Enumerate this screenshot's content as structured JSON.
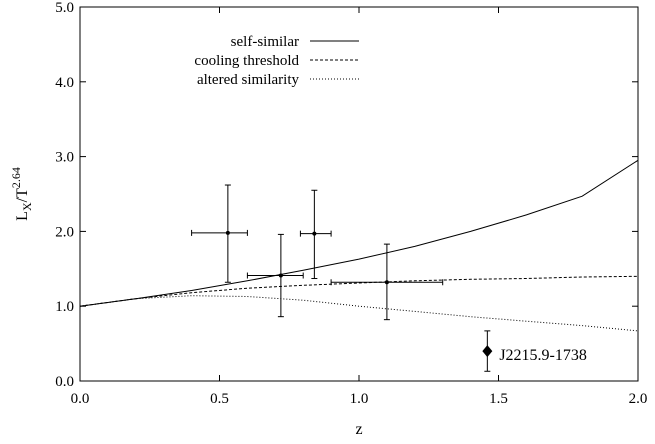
{
  "chart_data": {
    "type": "scatter",
    "xlabel": "z",
    "ylabel": {
      "base": "L",
      "sub": "X",
      "mid": "/T",
      "sup": "2.64"
    },
    "xlim": [
      0.0,
      2.0
    ],
    "ylim": [
      0.0,
      5.0
    ],
    "xticks": [
      0.0,
      0.5,
      1.0,
      1.5,
      2.0
    ],
    "xtick_labels": [
      "0.0",
      "0.5",
      "1.0",
      "1.5",
      "2.0"
    ],
    "yticks": [
      0.0,
      1.0,
      2.0,
      3.0,
      4.0,
      5.0
    ],
    "ytick_labels": [
      "0.0",
      "1.0",
      "2.0",
      "3.0",
      "4.0",
      "5.0"
    ],
    "grid": false,
    "legend_position": "top-left",
    "series": [
      {
        "name": "self-similar",
        "style": "solid",
        "x": [
          0.0,
          0.2,
          0.4,
          0.6,
          0.8,
          1.0,
          1.2,
          1.4,
          1.6,
          1.8,
          2.0
        ],
        "y": [
          1.0,
          1.1,
          1.21,
          1.34,
          1.48,
          1.63,
          1.8,
          2.0,
          2.22,
          2.47,
          2.95
        ]
      },
      {
        "name": "cooling threshold",
        "style": "dashed",
        "x": [
          0.0,
          0.2,
          0.4,
          0.6,
          0.8,
          1.0,
          1.2,
          1.4,
          1.6,
          1.8,
          2.0
        ],
        "y": [
          1.0,
          1.1,
          1.18,
          1.24,
          1.28,
          1.31,
          1.34,
          1.36,
          1.37,
          1.39,
          1.4
        ]
      },
      {
        "name": "altered similarity",
        "style": "dotted",
        "x": [
          0.0,
          0.2,
          0.4,
          0.6,
          0.8,
          1.0,
          1.2,
          1.4,
          1.6,
          1.8,
          2.0
        ],
        "y": [
          1.0,
          1.1,
          1.14,
          1.13,
          1.08,
          1.0,
          0.93,
          0.86,
          0.8,
          0.74,
          0.67
        ]
      }
    ],
    "points": [
      {
        "x": 0.53,
        "y": 1.98,
        "xerr": [
          0.13,
          0.07
        ],
        "yerr": [
          0.66,
          0.64
        ]
      },
      {
        "x": 0.72,
        "y": 1.41,
        "xerr": [
          0.12,
          0.08
        ],
        "yerr": [
          0.55,
          0.55
        ]
      },
      {
        "x": 0.84,
        "y": 1.97,
        "xerr": [
          0.05,
          0.06
        ],
        "yerr": [
          0.6,
          0.58
        ]
      },
      {
        "x": 1.1,
        "y": 1.32,
        "xerr": [
          0.2,
          0.2
        ],
        "yerr": [
          0.5,
          0.51
        ]
      }
    ],
    "highlight": {
      "x": 1.46,
      "y": 0.4,
      "yerr": [
        0.27,
        0.27
      ],
      "marker": "diamond",
      "label": "J2215.9-1738"
    }
  }
}
